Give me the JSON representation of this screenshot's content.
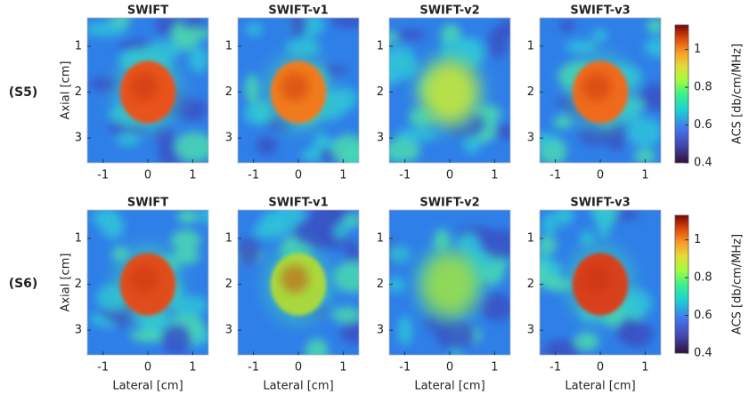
{
  "row_labels": [
    "(S5)",
    "(S6)"
  ],
  "chart_data": [
    {
      "type": "image",
      "title": "SWIFT",
      "color": "#e8521c",
      "xlim": [
        -1.35,
        1.35
      ],
      "ylim": [
        3.54,
        0.38
      ],
      "xticks": [
        -1,
        0,
        1
      ],
      "yticks": [
        1,
        2,
        3
      ],
      "ylabel": "Axial [cm]"
    },
    {
      "type": "image",
      "title": "SWIFT-v1",
      "color": "#f07a1e",
      "xlim": [
        -1.35,
        1.35
      ],
      "ylim": [
        3.54,
        0.38
      ],
      "xticks": [
        -1,
        0,
        1
      ],
      "yticks": [
        1,
        2,
        3
      ]
    },
    {
      "type": "image",
      "title": "SWIFT-v2",
      "color": "#b6e04a",
      "xlim": [
        -1.35,
        1.35
      ],
      "ylim": [
        3.54,
        0.38
      ],
      "xticks": [
        -1,
        0,
        1
      ],
      "yticks": [
        1,
        2,
        3
      ]
    },
    {
      "type": "image",
      "title": "SWIFT-v3",
      "color": "#ef6a1a",
      "xlim": [
        -1.35,
        1.35
      ],
      "ylim": [
        3.54,
        0.38
      ],
      "xticks": [
        -1,
        0,
        1
      ],
      "yticks": [
        1,
        2,
        3
      ]
    },
    {
      "type": "colorbar",
      "label": "ACS [db/cm/MHz]",
      "ylim": [
        0.4,
        1.13
      ],
      "yticks": [
        0.4,
        0.6,
        0.8,
        1
      ]
    },
    {
      "type": "image",
      "title": "SWIFT",
      "color": "#e04d1a",
      "xlim": [
        -1.35,
        1.35
      ],
      "ylim": [
        3.54,
        0.38
      ],
      "xticks": [
        -1,
        0,
        1
      ],
      "yticks": [
        1,
        2,
        3
      ],
      "ylabel": "Axial [cm]",
      "xlabel": "Lateral [cm]"
    },
    {
      "type": "image",
      "title": "SWIFT-v1",
      "color": "#a8d83c",
      "xlim": [
        -1.35,
        1.35
      ],
      "ylim": [
        3.54,
        0.38
      ],
      "xticks": [
        -1,
        0,
        1
      ],
      "yticks": [
        1,
        2,
        3
      ],
      "xlabel": "Lateral [cm]"
    },
    {
      "type": "image",
      "title": "SWIFT-v2",
      "color": "#8ed85a",
      "xlim": [
        -1.35,
        1.35
      ],
      "ylim": [
        3.54,
        0.38
      ],
      "xticks": [
        -1,
        0,
        1
      ],
      "yticks": [
        1,
        2,
        3
      ],
      "xlabel": "Lateral [cm]"
    },
    {
      "type": "image",
      "title": "SWIFT-v3",
      "color": "#d8401a",
      "xlim": [
        -1.35,
        1.35
      ],
      "ylim": [
        3.54,
        0.38
      ],
      "xticks": [
        -1,
        0,
        1
      ],
      "yticks": [
        1,
        2,
        3
      ],
      "xlabel": "Lateral [cm]"
    },
    {
      "type": "colorbar",
      "label": "ACS [db/cm/MHz]",
      "ylim": [
        0.4,
        1.13
      ],
      "yticks": [
        0.4,
        0.6,
        0.8,
        1
      ]
    }
  ]
}
